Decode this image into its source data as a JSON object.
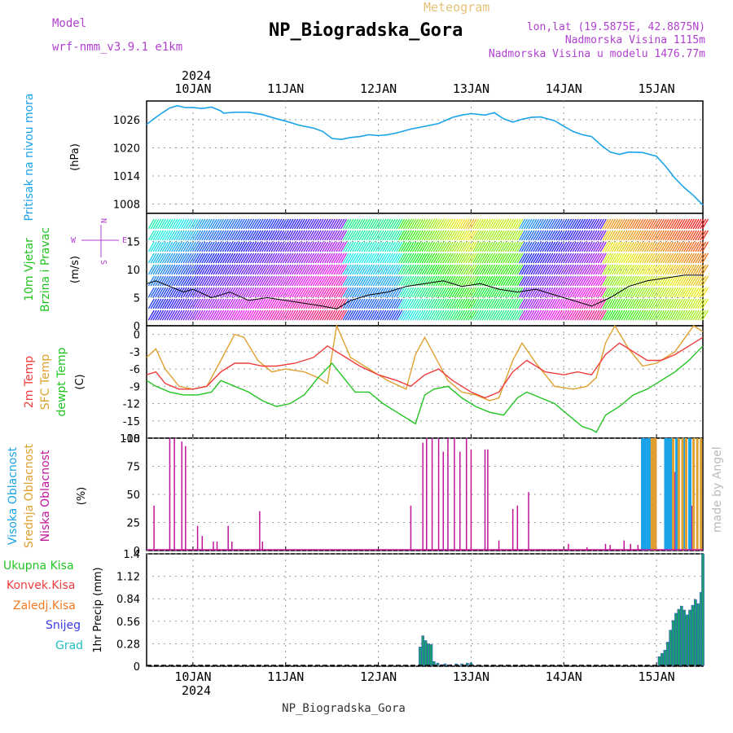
{
  "header": {
    "model_label": "Model",
    "model_name": "wrf-nmm_v3.9.1 e1km",
    "product": "Meteogram",
    "station": "NP_Biogradska_Gora",
    "lonlat": "lon,lat (19.5875E, 42.8875N)",
    "elevation": "Nadmorska Visina 1115m",
    "model_elevation": "Nadmorska Visina u modelu 1476.77m",
    "year": "2024",
    "footer_station": "NP_Biogradska_Gora",
    "credit": "made by Angel"
  },
  "colors": {
    "pressure": "#1aa3e8",
    "temp2m": "#f03c3c",
    "sfc": "#e0a030",
    "dewpt": "#22c422",
    "high_cloud": "#1aa3e8",
    "mid_cloud": "#e0a030",
    "low_cloud": "#c0159b",
    "total_rain": "#22c422",
    "conv_rain": "#f03c3c",
    "frz_rain": "#f07a22",
    "snow": "#3a3ae8",
    "hail": "#20c0c0",
    "axis_label": "#000000",
    "purple_text": "#b040d0"
  },
  "time_axis": {
    "start_day": 9.5,
    "end_day": 15.5,
    "day_labels": [
      "10JAN",
      "11JAN",
      "12JAN",
      "13JAN",
      "14JAN",
      "15JAN"
    ],
    "day_values": [
      10,
      11,
      12,
      13,
      14,
      15
    ]
  },
  "panels": {
    "pressure": {
      "ylabel_left": "Pritisak na nivou mora",
      "unit": "(hPa)",
      "ylim": [
        1006,
        1030
      ],
      "ticks": [
        1008,
        1014,
        1020,
        1026
      ]
    },
    "wind": {
      "ylabel_line1": "10m Vjetar",
      "ylabel_line2": "Brzina i Pravac",
      "unit": "(m/s)",
      "ylim": [
        0,
        20
      ],
      "ticks": [
        0,
        5,
        10,
        15
      ],
      "compass_n": "N",
      "compass_s": "S",
      "compass_w": "W",
      "compass_e": "E"
    },
    "temp": {
      "ylabel_2m": "2m Temp",
      "ylabel_sfc": "SFC Temp",
      "ylabel_dew": "dewpt Temp",
      "unit": "(C)",
      "ylim": [
        -18,
        1.5
      ],
      "ticks": [
        -18,
        -15,
        -12,
        -9,
        -6,
        -3,
        0
      ]
    },
    "cloud": {
      "ylabel_high": "Visoka Oblacnost",
      "ylabel_mid": "Srednja Oblacnost",
      "ylabel_low": "Niska Oblacnost",
      "unit": "(%)",
      "ylim": [
        0,
        100
      ],
      "ticks": [
        0,
        25,
        50,
        75,
        100
      ]
    },
    "precip": {
      "legend_total": "Ukupna Kisa",
      "legend_conv": "Konvek.Kisa",
      "legend_frz": "Zaledj.Kisa",
      "legend_snow": "Snijeg",
      "legend_hail": "Grad",
      "unit": "1hr Precip (mm)",
      "ylim": [
        0,
        1.4
      ],
      "ticks": [
        0,
        0.28,
        0.56,
        0.84,
        1.12,
        1.4
      ],
      "tick_labels": [
        "0",
        "0.28",
        "0.56",
        "0.84",
        "1.12",
        "1.4"
      ]
    }
  },
  "chart_data": [
    {
      "type": "line",
      "title": "Pritisak na nivou mora",
      "ylabel": "(hPa)",
      "series": [
        {
          "name": "Pritisak na nivou mora",
          "x": [
            9.5,
            9.58,
            9.67,
            9.75,
            9.83,
            9.92,
            10.0,
            10.1,
            10.2,
            10.3,
            10.33,
            10.45,
            10.6,
            10.75,
            10.9,
            11.0,
            11.15,
            11.3,
            11.4,
            11.5,
            11.6,
            11.7,
            11.8,
            11.9,
            12.0,
            12.1,
            12.2,
            12.35,
            12.5,
            12.65,
            12.8,
            12.9,
            13.0,
            13.15,
            13.25,
            13.35,
            13.45,
            13.55,
            13.65,
            13.75,
            13.9,
            14.0,
            14.1,
            14.2,
            14.3,
            14.4,
            14.5,
            14.6,
            14.7,
            14.85,
            15.0,
            15.1,
            15.2,
            15.3,
            15.4,
            15.5
          ],
          "values": [
            1025.0,
            1026.2,
            1027.5,
            1028.5,
            1029.0,
            1028.6,
            1028.6,
            1028.4,
            1028.7,
            1027.9,
            1027.4,
            1027.6,
            1027.6,
            1027.1,
            1026.2,
            1025.7,
            1024.8,
            1024.2,
            1023.5,
            1022.0,
            1021.8,
            1022.2,
            1022.4,
            1022.8,
            1022.6,
            1022.8,
            1023.2,
            1024.0,
            1024.6,
            1025.2,
            1026.5,
            1027.0,
            1027.3,
            1027.0,
            1027.5,
            1026.2,
            1025.5,
            1026.1,
            1026.5,
            1026.6,
            1025.8,
            1024.6,
            1023.5,
            1022.8,
            1022.4,
            1020.6,
            1019.1,
            1018.6,
            1019.1,
            1019.0,
            1018.2,
            1016.0,
            1013.5,
            1011.5,
            1009.8,
            1007.8
          ]
        }
      ],
      "ylim": [
        1006,
        1030
      ]
    },
    {
      "type": "line",
      "title": "10m Vjetar Brzina i Pravac",
      "ylabel": "(m/s)",
      "series": [
        {
          "name": "10m Vjetar",
          "x": [
            9.5,
            9.6,
            9.75,
            9.9,
            10.0,
            10.2,
            10.4,
            10.6,
            10.8,
            11.0,
            11.2,
            11.4,
            11.55,
            11.7,
            11.9,
            12.1,
            12.3,
            12.5,
            12.7,
            12.9,
            13.1,
            13.3,
            13.5,
            13.7,
            13.9,
            14.1,
            14.3,
            14.5,
            14.7,
            14.9,
            15.1,
            15.3,
            15.5
          ],
          "values": [
            7.5,
            8.0,
            7.0,
            6.0,
            6.5,
            5.0,
            6.0,
            4.5,
            5.0,
            4.5,
            4.0,
            3.5,
            3.0,
            4.5,
            5.5,
            6.0,
            7.0,
            7.5,
            8.0,
            7.0,
            7.5,
            6.5,
            6.0,
            6.5,
            5.5,
            4.5,
            3.5,
            5.0,
            7.0,
            8.0,
            8.5,
            9.0,
            9.0
          ]
        }
      ],
      "ylim": [
        0,
        20
      ]
    },
    {
      "type": "line",
      "title": "2m Temp / SFC Temp / dewpt Temp",
      "ylabel": "(C)",
      "series": [
        {
          "name": "2m Temp",
          "x": [
            9.5,
            9.6,
            9.7,
            9.85,
            10.0,
            10.15,
            10.3,
            10.45,
            10.6,
            10.75,
            10.9,
            11.1,
            11.3,
            11.45,
            11.6,
            11.8,
            12.0,
            12.2,
            12.35,
            12.5,
            12.65,
            12.8,
            13.0,
            13.15,
            13.3,
            13.45,
            13.6,
            13.8,
            14.0,
            14.15,
            14.3,
            14.45,
            14.6,
            14.75,
            14.9,
            15.05,
            15.2,
            15.35,
            15.5
          ],
          "values": [
            -7.0,
            -6.5,
            -8.5,
            -9.5,
            -9.5,
            -9.0,
            -6.5,
            -5.0,
            -5.0,
            -5.5,
            -5.5,
            -5.0,
            -4.0,
            -2.0,
            -3.5,
            -5.5,
            -7.0,
            -8.0,
            -9.0,
            -7.0,
            -6.0,
            -8.0,
            -10.0,
            -11.0,
            -10.0,
            -6.5,
            -4.5,
            -6.5,
            -7.0,
            -6.5,
            -7.0,
            -3.5,
            -1.5,
            -3.0,
            -4.5,
            -4.5,
            -3.5,
            -2.0,
            -0.5
          ]
        },
        {
          "name": "SFC Temp",
          "x": [
            9.5,
            9.6,
            9.7,
            9.85,
            10.0,
            10.15,
            10.3,
            10.45,
            10.55,
            10.7,
            10.85,
            11.0,
            11.2,
            11.35,
            11.45,
            11.55,
            11.7,
            11.9,
            12.1,
            12.3,
            12.4,
            12.5,
            12.6,
            12.75,
            12.9,
            13.05,
            13.2,
            13.3,
            13.45,
            13.55,
            13.7,
            13.9,
            14.1,
            14.25,
            14.35,
            14.45,
            14.55,
            14.7,
            14.85,
            15.0,
            15.2,
            15.4,
            15.5
          ],
          "values": [
            -4.0,
            -2.5,
            -6.0,
            -9.0,
            -9.5,
            -9.0,
            -4.5,
            0.0,
            -0.5,
            -4.5,
            -6.5,
            -6.0,
            -6.5,
            -7.5,
            -8.5,
            1.5,
            -4.0,
            -6.0,
            -8.0,
            -9.5,
            -3.5,
            -0.5,
            -3.5,
            -8.0,
            -10.0,
            -10.5,
            -11.5,
            -11.0,
            -4.5,
            -1.5,
            -5.0,
            -9.0,
            -9.5,
            -9.0,
            -7.5,
            -1.5,
            1.5,
            -2.5,
            -5.5,
            -5.0,
            -3.0,
            1.5,
            0.5
          ]
        },
        {
          "name": "dewpt Temp",
          "x": [
            9.5,
            9.6,
            9.75,
            9.9,
            10.05,
            10.2,
            10.3,
            10.45,
            10.6,
            10.75,
            10.9,
            11.05,
            11.2,
            11.35,
            11.5,
            11.6,
            11.75,
            11.9,
            12.05,
            12.2,
            12.3,
            12.4,
            12.5,
            12.6,
            12.75,
            12.9,
            13.05,
            13.2,
            13.35,
            13.5,
            13.6,
            13.75,
            13.9,
            14.05,
            14.2,
            14.3,
            14.35,
            14.45,
            14.6,
            14.75,
            14.9,
            15.05,
            15.2,
            15.35,
            15.5
          ],
          "values": [
            -8.0,
            -9.0,
            -10.0,
            -10.5,
            -10.5,
            -10.0,
            -8.0,
            -9.0,
            -10.0,
            -11.5,
            -12.5,
            -12.0,
            -10.5,
            -7.5,
            -5.0,
            -7.0,
            -10.0,
            -10.0,
            -12.0,
            -13.5,
            -14.5,
            -15.5,
            -10.5,
            -9.5,
            -9.0,
            -11.0,
            -12.5,
            -13.5,
            -14.0,
            -11.0,
            -10.0,
            -11.0,
            -12.0,
            -14.0,
            -16.0,
            -16.5,
            -17.0,
            -14.0,
            -12.5,
            -10.5,
            -9.5,
            -8.0,
            -6.5,
            -4.5,
            -2.0
          ]
        }
      ],
      "ylim": [
        -18,
        1.5
      ]
    },
    {
      "type": "bar",
      "title": "Visoka / Srednja / Niska Oblacnost",
      "ylabel": "(%)",
      "series": [
        {
          "name": "Niska Oblacnost",
          "x": [
            9.58,
            9.75,
            9.8,
            9.88,
            9.92,
            10.05,
            10.1,
            10.22,
            10.26,
            10.38,
            10.42,
            10.72,
            10.75,
            12.35,
            12.48,
            12.52,
            12.58,
            12.65,
            12.7,
            12.75,
            12.82,
            12.88,
            12.95,
            13.0,
            13.15,
            13.18,
            13.3,
            13.45,
            13.5,
            13.62,
            14.05,
            14.25,
            14.45,
            14.5,
            14.65,
            14.72,
            14.8,
            14.85,
            15.1,
            15.2,
            15.38
          ],
          "values": [
            40,
            100,
            100,
            97,
            93,
            22,
            13,
            8,
            8,
            22,
            8,
            35,
            8,
            40,
            96,
            100,
            100,
            100,
            88,
            100,
            100,
            88,
            100,
            90,
            90,
            90,
            9,
            37,
            40,
            52,
            6,
            3,
            6,
            5,
            9,
            6,
            5,
            5,
            40,
            70,
            40
          ]
        },
        {
          "name": "Visoka Oblacnost",
          "x": [
            14.85,
            14.87,
            14.89,
            14.91,
            14.93,
            15.1,
            15.12,
            15.14,
            15.16,
            15.22,
            15.3,
            15.36
          ],
          "values": [
            100,
            100,
            100,
            100,
            100,
            100,
            100,
            100,
            100,
            100,
            100,
            100
          ]
        },
        {
          "name": "Srednja Oblacnost",
          "x": [
            14.95,
            14.97,
            14.99,
            15.18,
            15.24,
            15.28,
            15.32,
            15.4,
            15.44,
            15.48
          ],
          "values": [
            100,
            100,
            100,
            100,
            100,
            100,
            100,
            100,
            100,
            100
          ]
        }
      ],
      "ylim": [
        0,
        100
      ]
    },
    {
      "type": "bar",
      "title": "1hr Precip",
      "ylabel": "1hr Precip (mm)",
      "series": [
        {
          "name": "Ukupna Kisa",
          "x": [
            12.45,
            12.48,
            12.51,
            12.54,
            12.57,
            12.6,
            12.64,
            12.68,
            12.72,
            12.78,
            12.84,
            12.9,
            12.96,
            13.0,
            15.03,
            15.06,
            15.09,
            15.12,
            15.15,
            15.18,
            15.21,
            15.24,
            15.27,
            15.3,
            15.33,
            15.36,
            15.39,
            15.42,
            15.45,
            15.48,
            15.5
          ],
          "values": [
            0.24,
            0.38,
            0.32,
            0.28,
            0.27,
            0.06,
            0.04,
            0.02,
            0.03,
            0.02,
            0.03,
            0.03,
            0.04,
            0.04,
            0.12,
            0.16,
            0.2,
            0.3,
            0.45,
            0.57,
            0.66,
            0.71,
            0.75,
            0.7,
            0.64,
            0.7,
            0.76,
            0.83,
            0.78,
            0.92,
            1.4
          ]
        }
      ],
      "ylim": [
        0,
        1.4
      ]
    }
  ]
}
